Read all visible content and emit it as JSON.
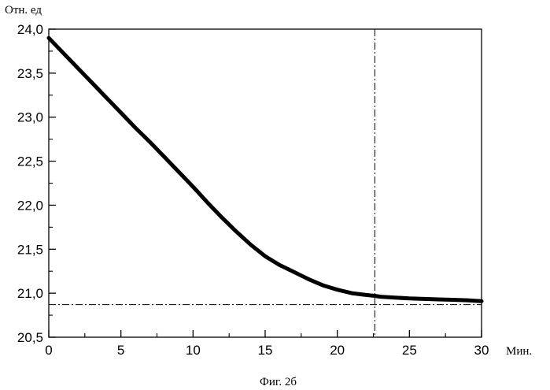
{
  "chart_data": {
    "type": "line",
    "ylabel": "Отн. ед",
    "xlabel": "Мин.",
    "caption": "Фиг. 2б",
    "xlim": [
      0,
      30
    ],
    "ylim": [
      20.5,
      24.0
    ],
    "x_ticks": [
      {
        "value": 0,
        "label": "0"
      },
      {
        "value": 5,
        "label": "5"
      },
      {
        "value": 10,
        "label": "10"
      },
      {
        "value": 15,
        "label": "15"
      },
      {
        "value": 20,
        "label": "20"
      },
      {
        "value": 25,
        "label": "25"
      },
      {
        "value": 30,
        "label": "30"
      }
    ],
    "y_ticks": [
      {
        "value": 20.5,
        "label": "20,5"
      },
      {
        "value": 21.0,
        "label": "21,0"
      },
      {
        "value": 21.5,
        "label": "21,5"
      },
      {
        "value": 22.0,
        "label": "22,0"
      },
      {
        "value": 22.5,
        "label": "22,5"
      },
      {
        "value": 23.0,
        "label": "23,0"
      },
      {
        "value": 23.5,
        "label": "23,5"
      },
      {
        "value": 24.0,
        "label": "24,0"
      }
    ],
    "x_minor_step": 2.5,
    "y_minor_step": 0.25,
    "grid": false,
    "series": [
      {
        "x": [
          0,
          1,
          2,
          3,
          4,
          5,
          6,
          7,
          8,
          9,
          10,
          11,
          12,
          13,
          14,
          15,
          16,
          17,
          18,
          19,
          20,
          21,
          22,
          22.6,
          23,
          24,
          25,
          26,
          27,
          28,
          29,
          30
        ],
        "y": [
          23.9,
          23.73,
          23.56,
          23.39,
          23.22,
          23.05,
          22.88,
          22.72,
          22.55,
          22.38,
          22.21,
          22.03,
          21.86,
          21.7,
          21.55,
          21.42,
          21.32,
          21.24,
          21.16,
          21.09,
          21.04,
          21.0,
          20.98,
          20.97,
          20.96,
          20.95,
          20.94,
          20.935,
          20.93,
          20.925,
          20.92,
          20.91
        ],
        "color": "#000000"
      }
    ],
    "reference_lines": [
      {
        "orientation": "vertical",
        "value": 22.6,
        "style": "dash-dot"
      },
      {
        "orientation": "horizontal",
        "value": 20.87,
        "style": "dash-dot"
      }
    ]
  }
}
